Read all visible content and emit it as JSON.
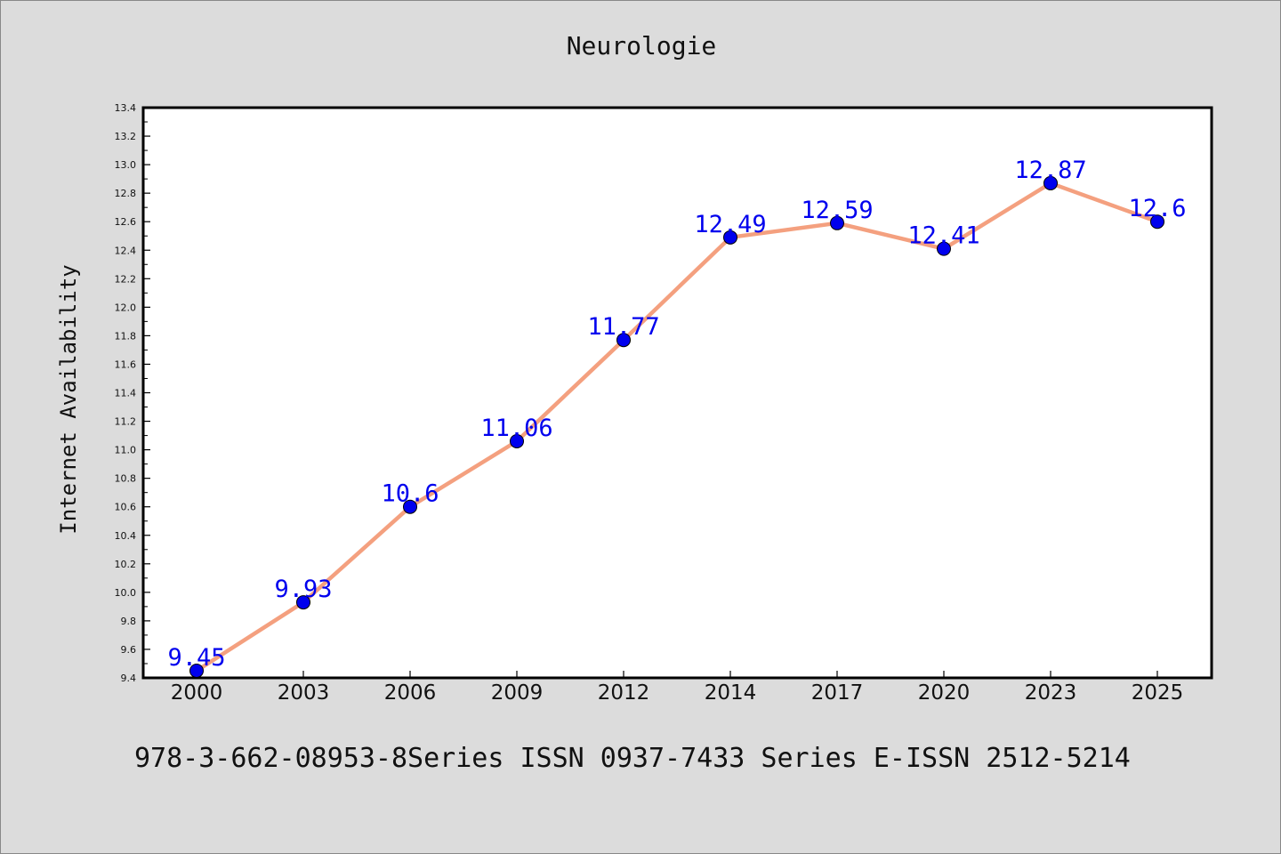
{
  "chart_data": {
    "type": "line",
    "title": "Neurologie",
    "xlabel": "",
    "ylabel": "Internet Availability",
    "categories": [
      "2000",
      "2003",
      "2006",
      "2009",
      "2012",
      "2014",
      "2017",
      "2020",
      "2023",
      "2025"
    ],
    "series": [
      {
        "values": [
          9.45,
          9.93,
          10.6,
          11.06,
          11.77,
          12.49,
          12.59,
          12.41,
          12.87,
          12.6
        ],
        "line_color": "#f4a07f",
        "marker_color": "#0000ee"
      }
    ],
    "data_labels": [
      "9.45",
      "9.93",
      "10.6",
      "11.06",
      "11.77",
      "12.49",
      "12.59",
      "12.41",
      "12.87",
      "12.6"
    ],
    "ylim": [
      9.4,
      13.4
    ],
    "yticks": [
      "9.4",
      "9.6",
      "9.8",
      "10.0",
      "10.2",
      "10.4",
      "10.6",
      "10.8",
      "11.0",
      "11.2",
      "11.4",
      "11.6",
      "11.8",
      "12.0",
      "12.2",
      "12.4",
      "12.6",
      "12.8",
      "13.0",
      "13.2",
      "13.4"
    ],
    "grid": false,
    "legend": "none",
    "label_color": "#0000ee"
  },
  "footer_text": "978-3-662-08953-8Series ISSN 0937-7433 Series E-ISSN 2512-5214"
}
